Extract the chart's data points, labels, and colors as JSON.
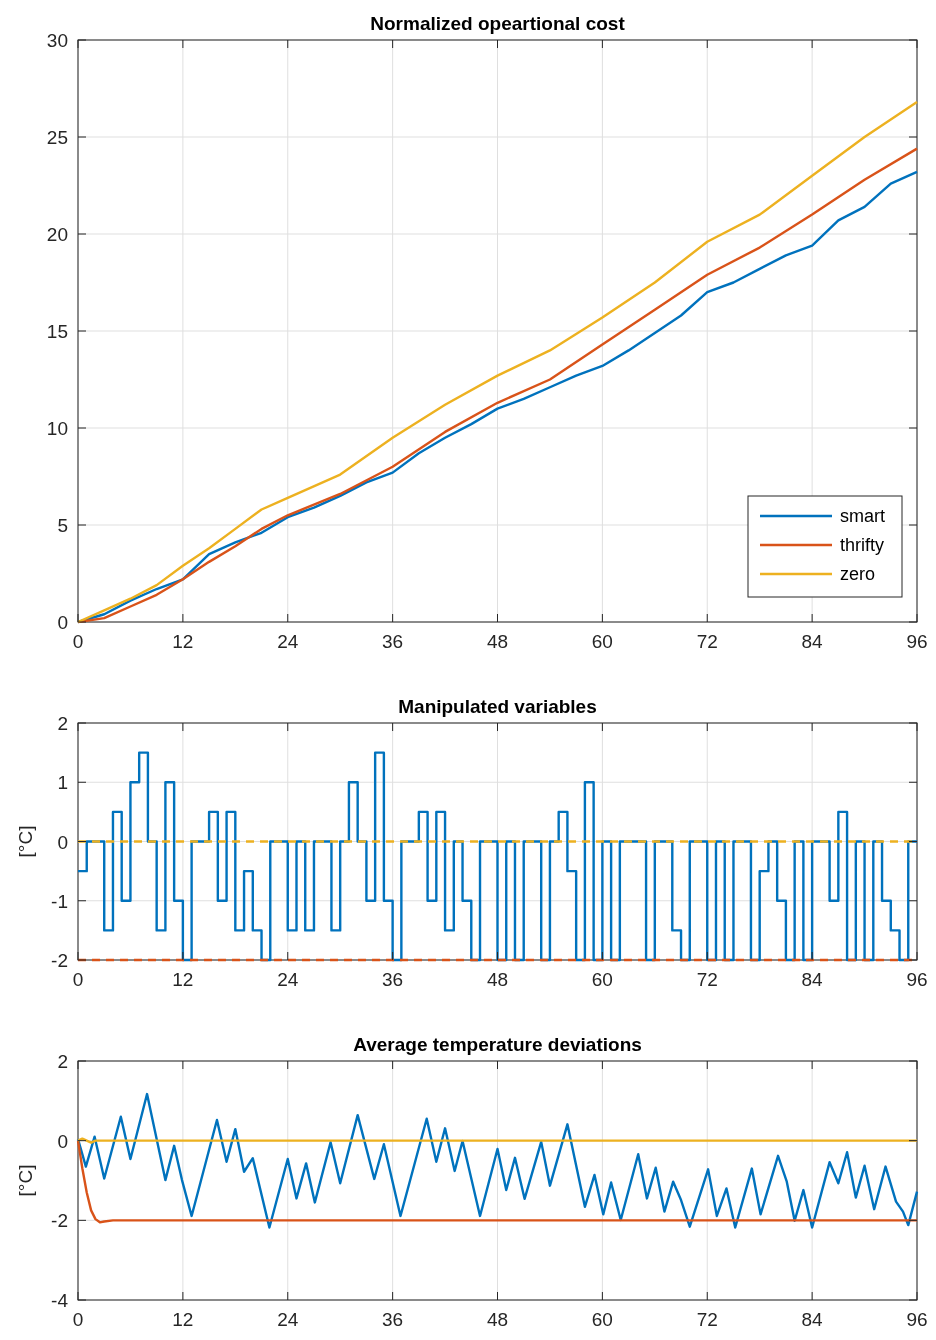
{
  "chart_data": [
    {
      "type": "line",
      "title": "Normalized opeartional cost",
      "xlim": [
        0,
        96
      ],
      "xticks": [
        0,
        12,
        24,
        36,
        48,
        60,
        72,
        84,
        96
      ],
      "ylim": [
        0,
        30
      ],
      "yticks": [
        0,
        5,
        10,
        15,
        20,
        25,
        30
      ],
      "grid": true,
      "legend": "bottom right",
      "series": [
        {
          "name": "smart",
          "color": "#0072bd",
          "x": [
            0,
            3,
            6,
            9,
            12,
            15,
            18,
            21,
            24,
            27,
            30,
            33,
            36,
            39,
            42,
            45,
            48,
            51,
            54,
            57,
            60,
            63,
            66,
            69,
            72,
            75,
            78,
            81,
            84,
            87,
            90,
            93,
            96
          ],
          "values": [
            0,
            0.4,
            1.1,
            1.7,
            2.2,
            3.5,
            4.1,
            4.6,
            5.4,
            5.9,
            6.5,
            7.2,
            7.7,
            8.7,
            9.5,
            10.2,
            11.0,
            11.5,
            12.1,
            12.7,
            13.2,
            14.0,
            14.9,
            15.8,
            17.0,
            17.5,
            18.2,
            18.9,
            19.4,
            20.7,
            21.4,
            22.6,
            23.2
          ]
        },
        {
          "name": "thrifty",
          "color": "#d95319",
          "x": [
            0,
            3,
            6,
            9,
            12,
            15,
            18,
            21,
            24,
            30,
            36,
            42,
            48,
            54,
            60,
            66,
            72,
            78,
            84,
            90,
            96
          ],
          "values": [
            0,
            0.2,
            0.8,
            1.4,
            2.2,
            3.1,
            3.9,
            4.8,
            5.5,
            6.6,
            8.0,
            9.8,
            11.3,
            12.5,
            14.3,
            16.1,
            17.9,
            19.3,
            21.0,
            22.8,
            24.4
          ]
        },
        {
          "name": "zero",
          "color": "#edb120",
          "x": [
            0,
            3,
            6,
            9,
            12,
            15,
            18,
            21,
            24,
            30,
            36,
            42,
            48,
            54,
            60,
            66,
            72,
            78,
            84,
            90,
            96
          ],
          "values": [
            0,
            0.6,
            1.2,
            1.9,
            2.9,
            3.8,
            4.8,
            5.8,
            6.4,
            7.6,
            9.5,
            11.2,
            12.7,
            14.0,
            15.7,
            17.5,
            19.6,
            21.0,
            23.0,
            25.0,
            26.8
          ]
        }
      ]
    },
    {
      "type": "line",
      "title": "Manipulated variables",
      "ylabel": "[°C]",
      "xlim": [
        0,
        96
      ],
      "xticks": [
        0,
        12,
        24,
        36,
        48,
        60,
        72,
        84,
        96
      ],
      "ylim": [
        -2,
        2
      ],
      "yticks": [
        -2,
        -1,
        0,
        1,
        2
      ],
      "grid": true,
      "series": [
        {
          "type": "step",
          "color": "#0072bd",
          "x": [
            0,
            1,
            2,
            3,
            4,
            5,
            6,
            7,
            8,
            9,
            10,
            11,
            12,
            13,
            14,
            15,
            16,
            17,
            18,
            19,
            20,
            21,
            22,
            23,
            24,
            25,
            26,
            27,
            28,
            29,
            30,
            31,
            32,
            33,
            34,
            35,
            36,
            37,
            38,
            39,
            40,
            41,
            42,
            43,
            44,
            45,
            46,
            47,
            48,
            49,
            50,
            51,
            52,
            53,
            54,
            55,
            56,
            57,
            58,
            59,
            60,
            61,
            62,
            63,
            64,
            65,
            66,
            67,
            68,
            69,
            70,
            71,
            72,
            73,
            74,
            75,
            76,
            77,
            78,
            79,
            80,
            81,
            82,
            83,
            84,
            85,
            86,
            87,
            88,
            89,
            90,
            91,
            92,
            93,
            94,
            95,
            96
          ],
          "values": [
            -0.5,
            0,
            0,
            -1.5,
            0.5,
            -1,
            1,
            1.5,
            0,
            -1.5,
            1,
            -1,
            -2,
            0,
            0,
            0.5,
            -1,
            0.5,
            -1.5,
            -0.5,
            -1.5,
            -2,
            0,
            0,
            -1.5,
            0,
            -1.5,
            0,
            0,
            -1.5,
            0,
            1,
            0,
            -1,
            1.5,
            -1,
            -2,
            0,
            0,
            0.5,
            -1,
            0.5,
            -1.5,
            0,
            -1,
            -2,
            0,
            0,
            -2,
            0,
            -2,
            0,
            0,
            -2,
            0,
            0.5,
            -0.5,
            -2,
            1,
            -2,
            0,
            -2,
            0,
            0,
            0,
            -2,
            0,
            0,
            -1.5,
            -2,
            0,
            0,
            -2,
            0,
            -2,
            0,
            0,
            -2,
            -0.5,
            0,
            -1,
            -2,
            0,
            -2,
            0,
            0,
            -1,
            0.5,
            -2,
            0,
            -2,
            0,
            -1,
            -1.5,
            -2,
            0,
            0
          ]
        },
        {
          "color": "#d95319",
          "line_style": "dashed",
          "x": [
            0,
            96
          ],
          "values": [
            -2,
            -2
          ]
        },
        {
          "color": "#edb120",
          "line_style": "dashed",
          "x": [
            0,
            96
          ],
          "values": [
            0,
            0
          ]
        }
      ]
    },
    {
      "type": "line",
      "title": "Average temperature deviations",
      "ylabel": "[°C]",
      "xlim": [
        0,
        96
      ],
      "xticks": [
        0,
        12,
        24,
        36,
        48,
        60,
        72,
        84,
        96
      ],
      "ylim": [
        -4,
        2
      ],
      "yticks": [
        -4,
        -2,
        0,
        2
      ],
      "grid": true,
      "series": [
        {
          "color": "#0072bd",
          "x": [
            0,
            0.9,
            1.9,
            3,
            4.9,
            6,
            7.9,
            10,
            11,
            11.9,
            13,
            15.9,
            17,
            18,
            19,
            20,
            21.9,
            24,
            25,
            26.1,
            27.1,
            28.9,
            30,
            32,
            33.9,
            35,
            36.9,
            39.9,
            41,
            42,
            43.1,
            44,
            46,
            48,
            49,
            50,
            51.1,
            53,
            54,
            56,
            58,
            59.1,
            60.1,
            61,
            62.1,
            64.1,
            65.1,
            66.1,
            67.1,
            68.1,
            69,
            70,
            72.1,
            73.1,
            74.2,
            75.2,
            77.1,
            78.1,
            80.1,
            81.1,
            82,
            83,
            84,
            86,
            87,
            88,
            89,
            90,
            91.1,
            92.4,
            93.6,
            94.4,
            95,
            96
          ],
          "values": [
            0.04,
            -0.65,
            0.1,
            -0.95,
            0.6,
            -0.46,
            1.17,
            -0.99,
            -0.13,
            -0.99,
            -1.89,
            0.52,
            -0.53,
            0.29,
            -0.78,
            -0.44,
            -2.18,
            -0.46,
            -1.45,
            -0.57,
            -1.55,
            -0.04,
            -1.07,
            0.64,
            -0.96,
            -0.09,
            -1.89,
            0.55,
            -0.53,
            0.31,
            -0.76,
            -0.01,
            -1.89,
            -0.21,
            -1.24,
            -0.43,
            -1.46,
            -0.03,
            -1.13,
            0.41,
            -1.66,
            -0.86,
            -1.85,
            -1.05,
            -1.99,
            -0.34,
            -1.45,
            -0.68,
            -1.78,
            -1.03,
            -1.49,
            -2.16,
            -0.72,
            -1.89,
            -1.2,
            -2.18,
            -0.7,
            -1.85,
            -0.38,
            -1.03,
            -2.01,
            -1.24,
            -2.18,
            -0.54,
            -1.07,
            -0.29,
            -1.43,
            -0.63,
            -1.72,
            -0.65,
            -1.53,
            -1.78,
            -2.12,
            -1.28
          ]
        },
        {
          "color": "#d95319",
          "x": [
            0,
            0.5,
            1,
            1.5,
            2,
            2.5,
            3,
            4,
            96
          ],
          "values": [
            0,
            -0.7,
            -1.3,
            -1.75,
            -1.97,
            -2.05,
            -2.03,
            -2,
            -2
          ]
        },
        {
          "color": "#edb120",
          "x": [
            0,
            0.5,
            1.5,
            2,
            96
          ],
          "values": [
            0,
            0.05,
            -0.05,
            0,
            0
          ]
        }
      ]
    }
  ]
}
